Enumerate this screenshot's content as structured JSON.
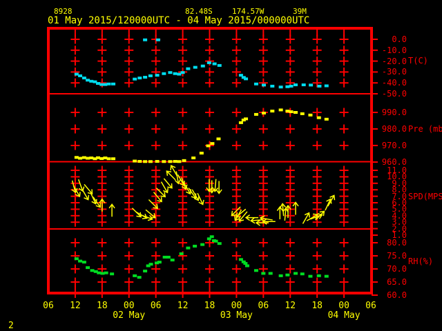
{
  "header": {
    "station_id": "8928",
    "lat": "82.48S",
    "lon": "174.57W",
    "elevation": "39M",
    "period": "01 May 2015/120000UTC - 04 May 2015/000000UTC"
  },
  "footer": {
    "prompt": "2"
  },
  "colors": {
    "background": "#000000",
    "grid": "#ff0000",
    "axis_text": "#ff0000",
    "header_text": "#ffff00",
    "temperature": "#00dcee",
    "pressure": "#ffff00",
    "wind": "#ffff00",
    "humidity": "#00dd22"
  },
  "x_axis": {
    "start": "01 May 2015 06UTC",
    "end": "04 May 2015 06UTC",
    "ticks": [
      {
        "hour": 0,
        "label": "06"
      },
      {
        "hour": 6,
        "label": "12"
      },
      {
        "hour": 12,
        "label": "18"
      },
      {
        "hour": 18,
        "label": "00"
      },
      {
        "hour": 24,
        "label": "06"
      },
      {
        "hour": 30,
        "label": "12"
      },
      {
        "hour": 36,
        "label": "18"
      },
      {
        "hour": 42,
        "label": "00"
      },
      {
        "hour": 48,
        "label": "06"
      },
      {
        "hour": 54,
        "label": "12"
      },
      {
        "hour": 60,
        "label": "18"
      },
      {
        "hour": 66,
        "label": "00"
      },
      {
        "hour": 72,
        "label": "06"
      }
    ],
    "date_labels": [
      {
        "hour": 18,
        "label": "02 May"
      },
      {
        "hour": 42,
        "label": "03 May"
      },
      {
        "hour": 66,
        "label": "04 May"
      }
    ]
  },
  "chart_data": [
    {
      "type": "scatter",
      "key": "temperature",
      "title": "T(C)",
      "color_key": "temperature",
      "ylim": [
        -50,
        0
      ],
      "ticks": [
        {
          "value": 0,
          "label": "0.0"
        },
        {
          "value": -10,
          "label": "-10.0"
        },
        {
          "value": -20,
          "label": "-20.0"
        },
        {
          "value": -30,
          "label": "-30.0"
        },
        {
          "value": -40,
          "label": "-40.0"
        },
        {
          "value": -50,
          "label": "-50.0"
        }
      ],
      "points": [
        [
          6.3,
          -32
        ],
        [
          7.1,
          -33.5
        ],
        [
          8,
          -35.5
        ],
        [
          8.8,
          -37.5
        ],
        [
          9.6,
          -38.5
        ],
        [
          10.4,
          -39
        ],
        [
          11.1,
          -40.5
        ],
        [
          11.9,
          -41.5
        ],
        [
          12.7,
          -41.5
        ],
        [
          13.5,
          -41
        ],
        [
          14.5,
          -41
        ],
        [
          19.3,
          -36.5
        ],
        [
          20.4,
          -35.5
        ],
        [
          21.6,
          -34.8
        ],
        [
          22.8,
          -33.5
        ],
        [
          24.3,
          -33
        ],
        [
          25.8,
          -31.5
        ],
        [
          27.2,
          -30.5
        ],
        [
          28.3,
          -31.5
        ],
        [
          29.2,
          -32
        ],
        [
          30,
          -30.5
        ],
        [
          31.2,
          -27
        ],
        [
          32.8,
          -25.7
        ],
        [
          34.5,
          -24.5
        ],
        [
          35.9,
          -21.5
        ],
        [
          37.1,
          -22.5
        ],
        [
          38.2,
          -24
        ],
        [
          21.6,
          -0.5
        ],
        [
          24.5,
          -0.5
        ],
        [
          43,
          -33
        ],
        [
          43.6,
          -35
        ],
        [
          44.1,
          -36.3
        ],
        [
          46.4,
          -41
        ],
        [
          48.1,
          -42
        ],
        [
          50,
          -43
        ],
        [
          51.9,
          -43.8
        ],
        [
          53.4,
          -43.5
        ],
        [
          54.2,
          -43
        ],
        [
          55.2,
          -41.8
        ],
        [
          57,
          -41.8
        ],
        [
          58.6,
          -42
        ],
        [
          60.5,
          -43
        ],
        [
          62.1,
          -42.7
        ]
      ]
    },
    {
      "type": "scatter",
      "key": "pressure",
      "title": "Pre (mb)",
      "color_key": "pressure",
      "ylim": [
        960,
        990
      ],
      "ticks": [
        {
          "value": 990,
          "label": "990.0"
        },
        {
          "value": 980,
          "label": "980.0"
        },
        {
          "value": 970,
          "label": "970.0"
        },
        {
          "value": 960,
          "label": "960.0"
        }
      ],
      "points": [
        [
          6.3,
          962.8
        ],
        [
          7.1,
          962.3
        ],
        [
          8,
          962.7
        ],
        [
          8.8,
          962.3
        ],
        [
          9.6,
          962.5
        ],
        [
          10.4,
          962
        ],
        [
          11.1,
          962.6
        ],
        [
          11.9,
          962.1
        ],
        [
          12.7,
          962.5
        ],
        [
          13.5,
          962
        ],
        [
          14.5,
          962
        ],
        [
          19.3,
          960.6
        ],
        [
          20.4,
          960.4
        ],
        [
          21.6,
          960.3
        ],
        [
          22.8,
          960.3
        ],
        [
          24.3,
          960.4
        ],
        [
          25.8,
          960.3
        ],
        [
          27.2,
          960.3
        ],
        [
          28.3,
          960.4
        ],
        [
          29.2,
          960.3
        ],
        [
          30.3,
          960.9
        ],
        [
          32.4,
          962.5
        ],
        [
          34.2,
          965.4
        ],
        [
          35.7,
          969.8
        ],
        [
          36.6,
          971.2
        ],
        [
          38,
          974
        ],
        [
          43,
          983.8
        ],
        [
          43.6,
          985.4
        ],
        [
          44.1,
          986.1
        ],
        [
          46.4,
          988.8
        ],
        [
          48.1,
          989.6
        ],
        [
          50,
          990.8
        ],
        [
          51.9,
          991.5
        ],
        [
          53.4,
          990.8
        ],
        [
          54.2,
          990.4
        ],
        [
          55.2,
          990
        ],
        [
          56.7,
          989.2
        ],
        [
          58.5,
          988.4
        ],
        [
          60.4,
          986.8
        ],
        [
          62.1,
          985.9
        ]
      ]
    },
    {
      "type": "vector",
      "key": "wind_speed",
      "title": "SPD(MPS)",
      "color_key": "wind",
      "ylim": [
        1,
        11
      ],
      "ticks": [
        {
          "value": 11,
          "label": "11.0"
        },
        {
          "value": 10,
          "label": "10.0"
        },
        {
          "value": 9,
          "label": "9.0"
        },
        {
          "value": 8,
          "label": "8.0"
        },
        {
          "value": 7,
          "label": "7.0"
        },
        {
          "value": 6,
          "label": "6.0"
        },
        {
          "value": 5,
          "label": "5.0"
        },
        {
          "value": 4,
          "label": "4.0"
        },
        {
          "value": 3,
          "label": "3.0"
        },
        {
          "value": 2,
          "label": "2.0"
        },
        {
          "value": 1,
          "label": "1.0"
        }
      ],
      "arrows": [
        [
          5.7,
          8.5,
          165
        ],
        [
          6.3,
          7.8,
          150
        ],
        [
          7.2,
          8.7,
          160
        ],
        [
          8.2,
          7.3,
          150
        ],
        [
          8.9,
          8.1,
          140
        ],
        [
          10,
          6.7,
          155
        ],
        [
          10.8,
          6.1,
          145
        ],
        [
          12,
          5.6,
          0
        ],
        [
          14.2,
          4.8,
          0
        ],
        [
          19.7,
          4.5,
          135
        ],
        [
          20.8,
          4.1,
          120
        ],
        [
          21.9,
          3.8,
          110
        ],
        [
          22.8,
          4.3,
          130
        ],
        [
          23.4,
          5.8,
          135
        ],
        [
          24.4,
          6.9,
          140
        ],
        [
          25.1,
          7.6,
          135
        ],
        [
          25.9,
          8.4,
          150
        ],
        [
          26.7,
          9,
          140
        ],
        [
          27.4,
          10.2,
          315
        ],
        [
          28.1,
          10.9,
          330
        ],
        [
          28.8,
          9.9,
          170
        ],
        [
          29.6,
          9.5,
          150
        ],
        [
          30.2,
          9,
          160
        ],
        [
          31,
          8.2,
          150
        ],
        [
          32.1,
          7.5,
          145
        ],
        [
          32.8,
          7.2,
          150
        ],
        [
          33.9,
          6.6,
          155
        ],
        [
          35.9,
          8.7,
          180
        ],
        [
          36.5,
          8.5,
          180
        ],
        [
          37.3,
          8.7,
          185
        ],
        [
          38.1,
          8.4,
          180
        ],
        [
          41.9,
          4.7,
          225
        ],
        [
          42.4,
          4.1,
          210
        ],
        [
          43,
          4.4,
          230
        ],
        [
          43.5,
          3.9,
          220
        ],
        [
          45.5,
          3.7,
          270
        ],
        [
          46.6,
          3.3,
          265
        ],
        [
          47.8,
          2.9,
          270
        ],
        [
          48.7,
          3.5,
          280
        ],
        [
          49.3,
          3.1,
          270
        ],
        [
          51.7,
          4.4,
          0
        ],
        [
          52.4,
          4.9,
          355
        ],
        [
          52.9,
          4.2,
          5
        ],
        [
          53.5,
          4.6,
          0
        ],
        [
          55.2,
          5.1,
          0
        ],
        [
          57.5,
          3.6,
          30
        ],
        [
          58.9,
          3.7,
          60
        ],
        [
          59.8,
          3.8,
          70
        ],
        [
          60.6,
          4,
          45
        ],
        [
          62.4,
          5.7,
          25
        ],
        [
          63.1,
          6.3,
          30
        ]
      ]
    },
    {
      "type": "scatter",
      "key": "relative_humidity",
      "title": "RH(%)",
      "color_key": "humidity",
      "ylim": [
        60,
        80
      ],
      "ticks": [
        {
          "value": 80,
          "label": "80.0"
        },
        {
          "value": 75,
          "label": "75.0"
        },
        {
          "value": 70,
          "label": "70.0"
        },
        {
          "value": 65,
          "label": "65.0"
        },
        {
          "value": 60,
          "label": "60.0"
        }
      ],
      "points": [
        [
          6.3,
          73.9
        ],
        [
          7.1,
          73
        ],
        [
          8,
          72.6
        ],
        [
          8.8,
          70.5
        ],
        [
          9.8,
          69.4
        ],
        [
          10.6,
          69
        ],
        [
          11.3,
          68.5
        ],
        [
          12.1,
          68.3
        ],
        [
          12.9,
          68.5
        ],
        [
          14.2,
          68.1
        ],
        [
          19.3,
          67.4
        ],
        [
          20.3,
          66.8
        ],
        [
          21.6,
          69.2
        ],
        [
          22.3,
          71.2
        ],
        [
          22.9,
          71.8
        ],
        [
          24.2,
          72.3
        ],
        [
          24.8,
          72.6
        ],
        [
          26,
          74.5
        ],
        [
          26.8,
          74.5
        ],
        [
          27.7,
          73.4
        ],
        [
          29.7,
          75.8
        ],
        [
          31.2,
          78
        ],
        [
          32.7,
          78.7
        ],
        [
          34.4,
          79.3
        ],
        [
          35.9,
          81.5
        ],
        [
          36.5,
          82.3
        ],
        [
          37,
          80.8
        ],
        [
          37.4,
          80.6
        ],
        [
          38.2,
          79.7
        ],
        [
          43,
          73.6
        ],
        [
          43.6,
          72.7
        ],
        [
          44,
          72.1
        ],
        [
          44.4,
          71.2
        ],
        [
          46.4,
          69.4
        ],
        [
          48,
          68.3
        ],
        [
          49.6,
          68.3
        ],
        [
          51.9,
          67.4
        ],
        [
          53.4,
          67.7
        ],
        [
          55.2,
          68.3
        ],
        [
          56.7,
          68.1
        ],
        [
          58.5,
          67.2
        ],
        [
          60.4,
          67.4
        ],
        [
          62.1,
          67.2
        ]
      ]
    }
  ]
}
